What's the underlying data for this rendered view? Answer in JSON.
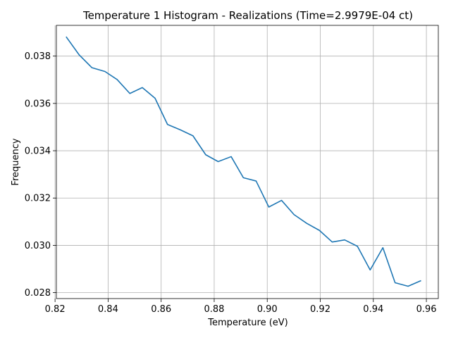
{
  "chart_data": {
    "type": "line",
    "title": "Temperature 1 Histogram - Realizations (Time=2.9979E-04 ct)",
    "xlabel": "Temperature (eV)",
    "ylabel": "Frequency",
    "xlim": [
      0.8205,
      0.9645
    ],
    "ylim": [
      0.02775,
      0.0393
    ],
    "x_ticks": [
      0.82,
      0.84,
      0.86,
      0.88,
      0.9,
      0.92,
      0.94,
      0.96
    ],
    "x_tick_labels": [
      "0.82",
      "0.84",
      "0.86",
      "0.88",
      "0.90",
      "0.92",
      "0.94",
      "0.96"
    ],
    "y_ticks": [
      0.028,
      0.03,
      0.032,
      0.034,
      0.036,
      0.038
    ],
    "y_tick_labels": [
      "0.028",
      "0.030",
      "0.032",
      "0.034",
      "0.036",
      "0.038"
    ],
    "grid": true,
    "series": [
      {
        "color": "#1f77b4",
        "x": [
          0.8243,
          0.8291,
          0.8339,
          0.8388,
          0.8434,
          0.8482,
          0.8529,
          0.8577,
          0.8624,
          0.8673,
          0.872,
          0.8768,
          0.8815,
          0.8864,
          0.891,
          0.8958,
          0.9006,
          0.9054,
          0.9101,
          0.9149,
          0.9197,
          0.9245,
          0.9292,
          0.934,
          0.9388,
          0.9436,
          0.9482,
          0.9531,
          0.9578
        ],
        "y": [
          0.0388,
          0.03805,
          0.03751,
          0.03735,
          0.03701,
          0.03642,
          0.03667,
          0.03622,
          0.03511,
          0.03488,
          0.03463,
          0.03383,
          0.03354,
          0.03375,
          0.03286,
          0.03272,
          0.03162,
          0.0319,
          0.0313,
          0.03093,
          0.03063,
          0.03014,
          0.03023,
          0.02996,
          0.02896,
          0.0299,
          0.02842,
          0.02827,
          0.0285
        ]
      }
    ]
  }
}
